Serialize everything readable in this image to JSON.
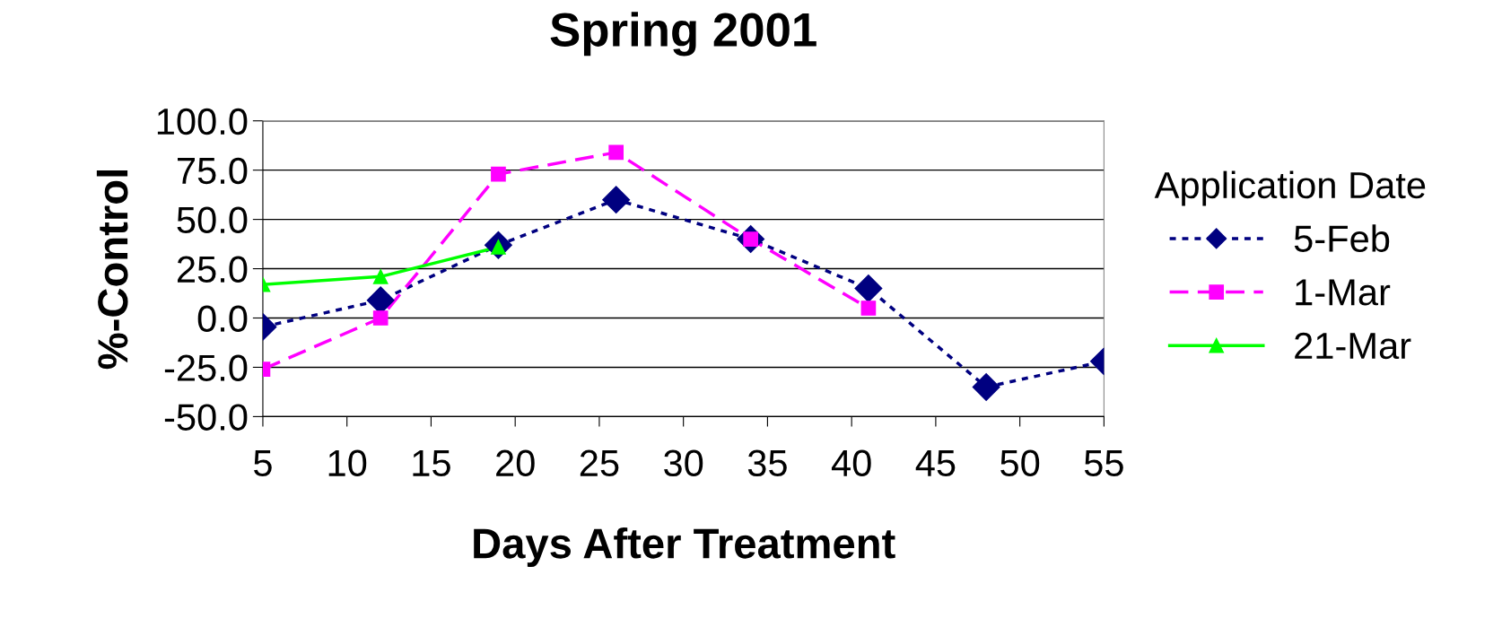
{
  "chart_data": {
    "type": "line",
    "title": "Spring 2001",
    "xlabel": "Days After Treatment",
    "ylabel": "%-Control",
    "legend_title": "Application Date",
    "legend": "right",
    "grid": "y",
    "xlim": [
      5,
      55
    ],
    "xticks": [
      5,
      10,
      15,
      20,
      25,
      30,
      35,
      40,
      45,
      50,
      55
    ],
    "ylim": [
      -50,
      100
    ],
    "yticks": [
      {
        "value": -50,
        "label": "-50.0"
      },
      {
        "value": -25,
        "label": "-25.0"
      },
      {
        "value": 0,
        "label": "0.0"
      },
      {
        "value": 25,
        "label": "25.0"
      },
      {
        "value": 50,
        "label": "50.0"
      },
      {
        "value": 75,
        "label": "75.0"
      },
      {
        "value": 100,
        "label": "100.0"
      }
    ],
    "series": [
      {
        "name": "5-Feb",
        "color": "#000080",
        "marker": "diamond",
        "line_style": "dotted",
        "x": [
          5,
          12,
          19,
          26,
          34,
          41,
          48,
          55
        ],
        "values": [
          -4.5,
          9,
          37,
          60,
          40,
          15,
          -35,
          -22
        ]
      },
      {
        "name": "1-Mar",
        "color": "#ff00ff",
        "marker": "square",
        "line_style": "dashed",
        "x": [
          5,
          12,
          19,
          26,
          34,
          41
        ],
        "values": [
          -26,
          0,
          73,
          84,
          40,
          5
        ]
      },
      {
        "name": "21-Mar",
        "color": "#00ff00",
        "marker": "triangle",
        "line_style": "solid",
        "x": [
          5,
          12,
          19
        ],
        "values": [
          17,
          21,
          36
        ]
      }
    ]
  }
}
